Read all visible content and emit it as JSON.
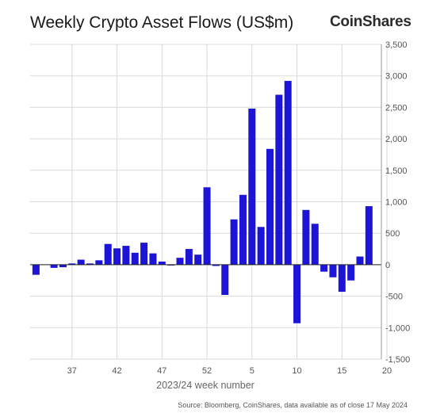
{
  "header": {
    "title": "Weekly Crypto Asset Flows (US$m)",
    "brand": "CoinShares"
  },
  "footer": {
    "source": "Source: Bloomberg, CoinShares, data available as of close 17 May 2024"
  },
  "chart_data": {
    "type": "bar",
    "title": "Weekly Crypto Asset Flows (US$m)",
    "xlabel": "2023/24 week number",
    "ylabel": "",
    "ylim": [
      -1500,
      3500
    ],
    "yticks": [
      3500,
      3000,
      2500,
      2000,
      1500,
      1000,
      500,
      0,
      -500,
      -1000,
      -1500
    ],
    "ytick_labels": [
      "3,500",
      "3,000",
      "2,500",
      "2,000",
      "1,500",
      "1,000",
      "500",
      "0",
      "-500",
      "-1,000",
      "-1,500"
    ],
    "y_axis_side": "right",
    "grid": "vertical",
    "bar_color": "#1c14d6",
    "categories": [
      "33",
      "34",
      "35",
      "36",
      "37",
      "38",
      "39",
      "40",
      "41",
      "42",
      "43",
      "44",
      "45",
      "46",
      "47",
      "48",
      "49",
      "50",
      "51",
      "52",
      "1",
      "2",
      "3",
      "4",
      "5",
      "6",
      "7",
      "8",
      "9",
      "10",
      "11",
      "12",
      "13",
      "14",
      "15",
      "16",
      "17",
      "18",
      "19",
      "20"
    ],
    "x_tick_labels": [
      "37",
      "42",
      "47",
      "52",
      "5",
      "10",
      "15",
      "20"
    ],
    "values": [
      -160,
      0,
      -50,
      -40,
      20,
      80,
      20,
      70,
      330,
      260,
      300,
      190,
      350,
      180,
      50,
      -10,
      110,
      250,
      160,
      1230,
      -20,
      -480,
      720,
      1110,
      2480,
      600,
      1840,
      2700,
      2920,
      -930,
      870,
      650,
      -110,
      -200,
      -430,
      -250,
      130,
      930,
      0,
      0
    ],
    "legend": "none"
  }
}
